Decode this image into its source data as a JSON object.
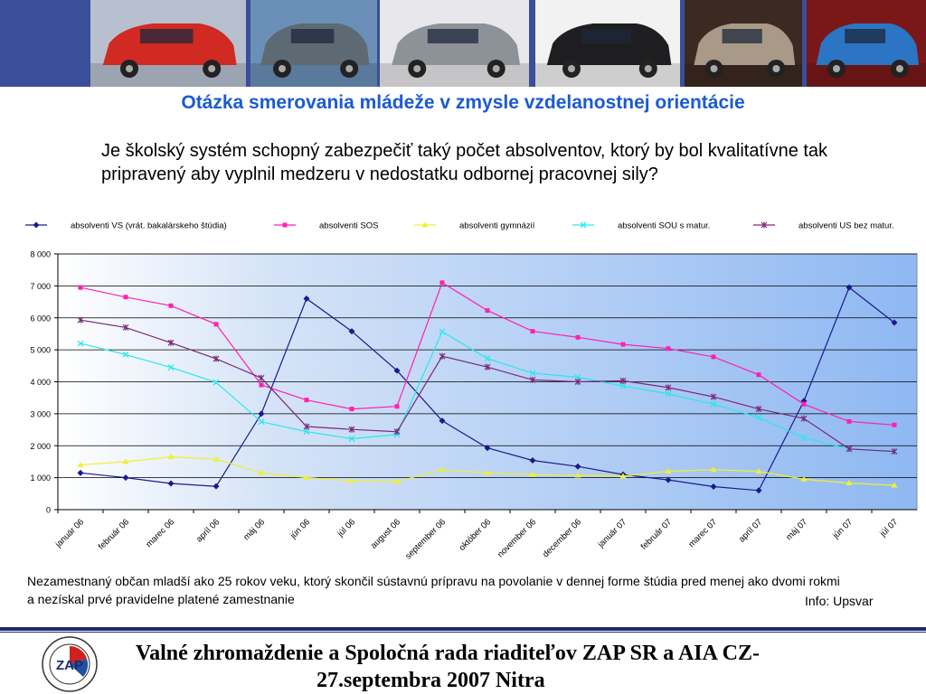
{
  "slide": {
    "title": "Otázka smerovania mládeže v zmysle vzdelanostnej orientácie",
    "question": "Je školský systém schopný zabezpečiť taký počet absolventov, ktorý by bol kvalitatívne tak pripravený aby vyplnil medzeru v nedostatku odbornej pracovnej sily?",
    "note": "Nezamestnaný občan mladší ako 25 rokov veku, ktorý skončil sústavnú prípravu na povolanie v dennej forme štúdia pred menej ako dvomi rokmi a nezískal prvé pravidelne platené zamestnanie",
    "source": "Info: Upsvar",
    "footer_line1": "Valné zhromaždenie a Spoločná rada riaditeľov ZAP SR a AIA CZ-",
    "footer_line2": "27.septembra 2007 Nitra",
    "logo_text": "ZAP"
  },
  "banner": {
    "photos": [
      {
        "name": "car-photo-1",
        "bg": "#b8c0d0",
        "car": "#d02a22"
      },
      {
        "name": "car-photo-2",
        "bg": "#6a90b8",
        "car": "#5d6a74"
      },
      {
        "name": "car-photo-3",
        "bg": "#e8e8ec",
        "car": "#8d9298"
      },
      {
        "name": "car-photo-4",
        "bg": "#f2f2f2",
        "car": "#1e1e20"
      },
      {
        "name": "car-photo-5",
        "bg": "#3c2a22",
        "car": "#a89a86"
      },
      {
        "name": "car-photo-6",
        "bg": "#7a1818",
        "car": "#2c74c4"
      }
    ]
  },
  "chart_data": {
    "type": "line",
    "categories": [
      "január 06",
      "február 06",
      "marec 06",
      "apríl 06",
      "máj 06",
      "jún 06",
      "júl 06",
      "august 06",
      "september 06",
      "október 06",
      "november 06",
      "december 06",
      "január 07",
      "február 07",
      "marec 07",
      "apríl 07",
      "máj 07",
      "jún 07",
      "júl 07"
    ],
    "ylim": [
      0,
      8000
    ],
    "yticks": [
      0,
      1000,
      2000,
      3000,
      4000,
      5000,
      6000,
      7000,
      8000
    ],
    "ytick_labels": [
      "0",
      "1 000",
      "2 000",
      "3 000",
      "4 000",
      "5 000",
      "6 000",
      "7 000",
      "8 000"
    ],
    "grid": true,
    "legend_position": "top",
    "series": [
      {
        "name": "absolventi VS (vrát. bakalárskeho štúdia)",
        "color": "#1a1a8c",
        "marker": "diamond",
        "values": [
          1150,
          1000,
          820,
          730,
          3000,
          6600,
          5580,
          4350,
          2780,
          1930,
          1540,
          1350,
          1100,
          930,
          720,
          600,
          3400,
          6950,
          5850
        ]
      },
      {
        "name": "absolventi SOS",
        "color": "#ff1fb4",
        "marker": "square",
        "values": [
          6950,
          6650,
          6380,
          5800,
          3900,
          3430,
          3150,
          3230,
          7100,
          6230,
          5580,
          5390,
          5170,
          5040,
          4780,
          4220,
          3300,
          2760,
          2650
        ]
      },
      {
        "name": "absolventi gymnázií",
        "color": "#f0ef32",
        "marker": "triangle",
        "values": [
          1400,
          1500,
          1650,
          1580,
          1150,
          1000,
          900,
          880,
          1250,
          1150,
          1100,
          1070,
          1050,
          1200,
          1250,
          1200,
          950,
          830,
          760
        ]
      },
      {
        "name": "absolventi SOU s matur.",
        "color": "#28e8ee",
        "marker": "x",
        "values": [
          5200,
          4850,
          4450,
          3980,
          2750,
          2440,
          2220,
          2350,
          5570,
          4730,
          4270,
          4140,
          3870,
          3620,
          3300,
          2880,
          2250,
          1900,
          1820
        ]
      },
      {
        "name": "absolventi US bez matur.",
        "color": "#7a2a7a",
        "marker": "star",
        "values": [
          5930,
          5700,
          5220,
          4720,
          4120,
          2600,
          2510,
          2440,
          4800,
          4460,
          4060,
          4000,
          4030,
          3820,
          3530,
          3150,
          2850,
          1900,
          1820
        ]
      }
    ]
  }
}
